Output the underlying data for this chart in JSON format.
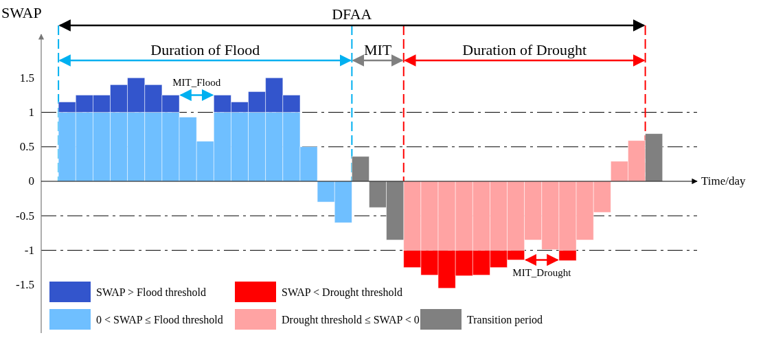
{
  "chart_data": {
    "type": "bar",
    "stacked": true,
    "xlabel": "Time/day",
    "ylabel": "SWAP",
    "categories": [
      null,
      null,
      null,
      null,
      null,
      null,
      null,
      null,
      null,
      null,
      null,
      null,
      null,
      null,
      null,
      null,
      null,
      null,
      null,
      null,
      null,
      null,
      null,
      null,
      null,
      null,
      null,
      null,
      null,
      null,
      null,
      null,
      null,
      null,
      null,
      null,
      null,
      null
    ],
    "ylim": [
      -2.2,
      2.13
    ],
    "yticks": [
      -1.5,
      -1,
      -0.5,
      0,
      0.5,
      1,
      1.5
    ],
    "tick_labels": "y",
    "legend": "bottom left",
    "series": [
      {
        "name": "0 < SWAP ≤ Flood threshold",
        "color": "#6fbfff",
        "values": [
          null,
          1,
          1,
          1,
          1,
          1,
          1,
          1,
          0.93,
          0.58,
          1,
          1,
          1,
          1,
          1,
          0.5,
          -0.3,
          -0.6,
          null,
          null,
          null,
          null,
          null,
          null,
          null,
          null,
          null,
          null,
          null,
          null,
          null,
          null,
          null,
          null,
          null,
          null,
          null,
          null
        ]
      },
      {
        "name": "SWAP > Flood threshold",
        "color": "#3355cc",
        "values": [
          null,
          0.15,
          0.25,
          0.25,
          0.4,
          0.5,
          0.4,
          0.25,
          null,
          null,
          0.25,
          0.15,
          0.3,
          0.5,
          0.25,
          null,
          null,
          null,
          null,
          null,
          null,
          null,
          null,
          null,
          null,
          null,
          null,
          null,
          null,
          null,
          null,
          null,
          null,
          null,
          null,
          null,
          null,
          null
        ]
      },
      {
        "name": "Drought threshold ≤ SWAP < 0",
        "color": "#ffa3a3",
        "values": [
          null,
          null,
          null,
          null,
          null,
          null,
          null,
          null,
          null,
          null,
          null,
          null,
          null,
          null,
          null,
          null,
          null,
          null,
          null,
          null,
          null,
          -1,
          -1,
          -1,
          -1,
          -1,
          -1,
          -1,
          -0.85,
          -0.99,
          -1,
          -0.85,
          -0.45,
          0.29,
          0.59,
          null,
          null,
          null
        ]
      },
      {
        "name": "SWAP < Drought threshold",
        "color": "#ff0000",
        "values": [
          null,
          null,
          null,
          null,
          null,
          null,
          null,
          null,
          null,
          null,
          null,
          null,
          null,
          null,
          null,
          null,
          null,
          null,
          null,
          null,
          null,
          -0.25,
          -0.36,
          -0.55,
          -0.37,
          -0.36,
          -0.25,
          -0.14,
          null,
          null,
          -0.15,
          null,
          null,
          null,
          null,
          null,
          null,
          null
        ]
      },
      {
        "name": "Transition period",
        "color": "#808080",
        "values": [
          null,
          null,
          null,
          null,
          null,
          null,
          null,
          null,
          null,
          null,
          null,
          null,
          null,
          null,
          null,
          null,
          null,
          null,
          0.36,
          -0.38,
          -0.85,
          null,
          null,
          null,
          null,
          null,
          null,
          null,
          null,
          null,
          null,
          null,
          null,
          null,
          null,
          0.69,
          null,
          null
        ]
      }
    ],
    "ref_lines": [
      {
        "axis": "y",
        "value": 1,
        "line_style": "dashed",
        "color": "#000000"
      },
      {
        "axis": "y",
        "value": 0.5,
        "line_style": "dashed",
        "color": "#000000"
      },
      {
        "axis": "y",
        "value": -0.5,
        "line_style": "dashed",
        "color": "#000000"
      },
      {
        "axis": "y",
        "value": -1,
        "line_style": "dashed",
        "color": "#000000"
      }
    ],
    "annotations": [
      "DFAA",
      "Duration of Flood",
      "MIT",
      "Duration of Drought",
      "MIT_Flood",
      "MIT_Drought"
    ]
  }
}
